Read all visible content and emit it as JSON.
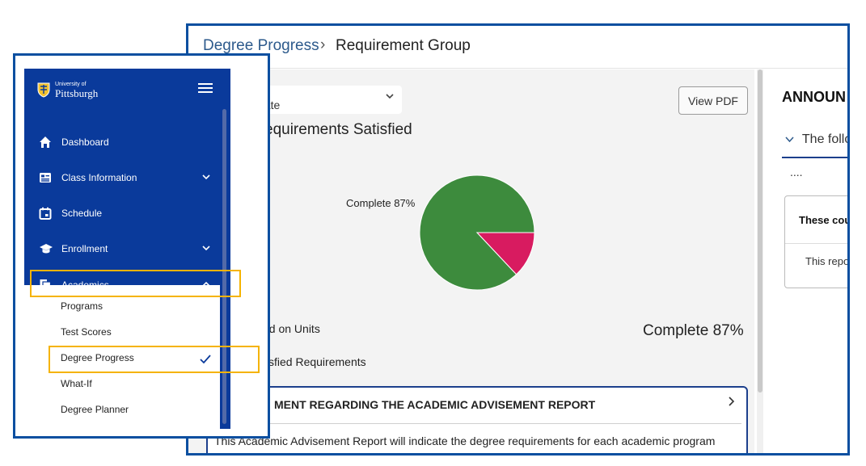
{
  "breadcrumb": {
    "parent": "Degree Progress",
    "separator": "›",
    "current": "Requirement Group"
  },
  "career_select": {
    "value": "uate"
  },
  "view_pdf_label": "View PDF",
  "requirements_title": "equirements Satisfied",
  "chart_data": {
    "type": "pie",
    "slices": [
      {
        "label": "Complete 87%",
        "value": 87,
        "color": "#3d8b3d"
      },
      {
        "label": "",
        "value": 13,
        "color": "#d81b60"
      }
    ]
  },
  "based_on_units": "ed on Units",
  "complete_summary": "Complete 87%",
  "satisfied_requirements": "tisfied Requirements",
  "advisement_card": {
    "title": "MENT REGARDING THE ACADEMIC ADVISEMENT REPORT",
    "body": "This Academic Advisement Report will indicate the degree requirements for each academic program"
  },
  "announcements": {
    "heading": "ANNOUN",
    "toggle": "The follo",
    "dots": "....",
    "box_title": "These cou",
    "box_body": "This repo"
  },
  "sidebar": {
    "logo_small": "University of",
    "logo_big": "Pittsburgh",
    "items": [
      {
        "label": "Dashboard",
        "icon": "home-icon"
      },
      {
        "label": "Class Information",
        "icon": "class-info-icon"
      },
      {
        "label": "Schedule",
        "icon": "calendar-icon"
      },
      {
        "label": "Enrollment",
        "icon": "graduation-cap-icon"
      },
      {
        "label": "Academics",
        "icon": "documents-icon"
      }
    ],
    "academics_sub": [
      "Programs",
      "Test Scores",
      "Degree Progress",
      "What-If",
      "Degree Planner"
    ]
  },
  "colors": {
    "nav_bg": "#0a3a9b",
    "highlight": "#f5b300",
    "window_border": "#0b4fa0",
    "pie_complete": "#3d8b3d",
    "pie_remaining": "#d81b60"
  }
}
